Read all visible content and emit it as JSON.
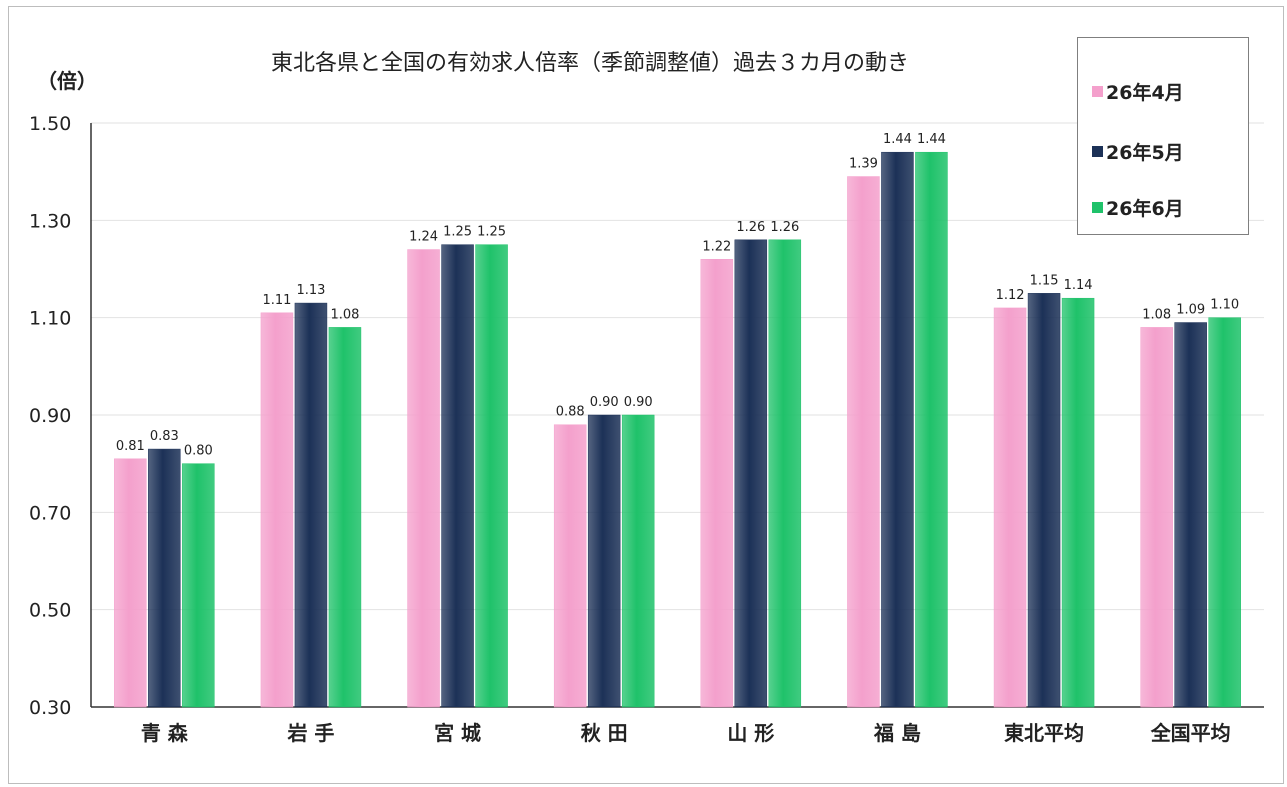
{
  "chart_data": {
    "type": "bar",
    "title": "東北各県と全国の有効求人倍率（季節調整値）過去３カ月の動き",
    "y_unit_label": "（倍）",
    "categories": [
      "青 森",
      "岩 手",
      "宮 城",
      "秋 田",
      "山 形",
      "福 島",
      "東北平均",
      "全国平均"
    ],
    "series": [
      {
        "name": "26年4月",
        "values": [
          0.81,
          1.11,
          1.24,
          0.88,
          1.22,
          1.39,
          1.12,
          1.08
        ],
        "color": "#f4a0cc"
      },
      {
        "name": "26年5月",
        "values": [
          0.83,
          1.13,
          1.25,
          0.9,
          1.26,
          1.44,
          1.15,
          1.09
        ],
        "color": "#1c3157"
      },
      {
        "name": "26年6月",
        "values": [
          0.8,
          1.08,
          1.25,
          0.9,
          1.26,
          1.44,
          1.14,
          1.1
        ],
        "color": "#1fc26a"
      }
    ],
    "ylim": [
      0.3,
      1.5
    ],
    "y_ticks": [
      "0.30",
      "0.50",
      "0.70",
      "0.90",
      "1.10",
      "1.30",
      "1.50"
    ],
    "data_labels": [
      [
        "0.81",
        "1.11",
        "1.24",
        "0.88",
        "1.22",
        "1.39",
        "1.12",
        "1.08"
      ],
      [
        "0.83",
        "1.13",
        "1.25",
        "0.90",
        "1.26",
        "1.44",
        "1.15",
        "1.09"
      ],
      [
        "0.80",
        "1.08",
        "1.25",
        "0.90",
        "1.26",
        "1.44",
        "1.14",
        "1.10"
      ]
    ],
    "grid": true,
    "legend_position": "top-right"
  }
}
